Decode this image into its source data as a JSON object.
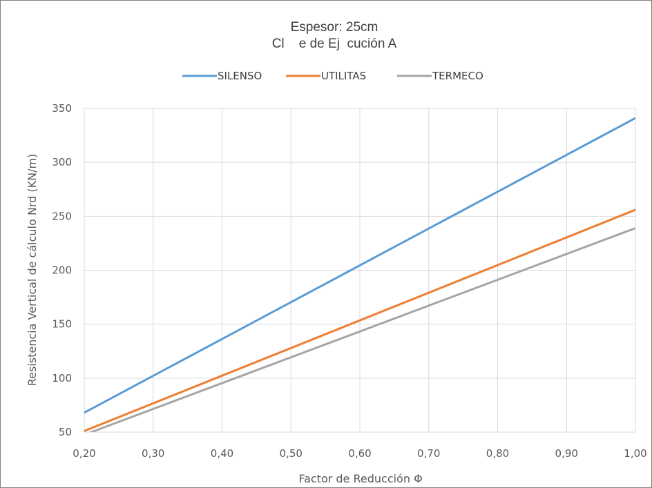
{
  "chart_data": {
    "type": "line",
    "title": "Espesor: 25cm",
    "subtitle": "Cl    e de Ej  cución A",
    "xlabel": "Factor de Reducción Φ",
    "ylabel": "Resistencia Vertical de cálculo Nrd (KN/m)",
    "xlim": [
      0.2,
      1.0
    ],
    "ylim": [
      50,
      350
    ],
    "x_ticks": [
      0.2,
      0.3,
      0.4,
      0.5,
      0.6,
      0.7,
      0.8,
      0.9,
      1.0
    ],
    "x_tick_labels": [
      "0,20",
      "0,30",
      "0,40",
      "0,50",
      "0,60",
      "0,70",
      "0,80",
      "0,90",
      "1,00"
    ],
    "y_ticks": [
      50,
      100,
      150,
      200,
      250,
      300,
      350
    ],
    "y_tick_labels": [
      "50",
      "100",
      "150",
      "200",
      "250",
      "300",
      "350"
    ],
    "grid": true,
    "legend_position": "top",
    "series": [
      {
        "name": "SILENSO",
        "color": "#5b9bd5",
        "x": [
          0.2,
          1.0
        ],
        "y": [
          68,
          341
        ]
      },
      {
        "name": "UTILITAS",
        "color": "#ed7d31",
        "x": [
          0.2,
          1.0
        ],
        "y": [
          51,
          256
        ]
      },
      {
        "name": "TERMECO",
        "color": "#a5a5a5",
        "x": [
          0.2,
          1.0
        ],
        "y": [
          47.5,
          239
        ]
      }
    ]
  }
}
